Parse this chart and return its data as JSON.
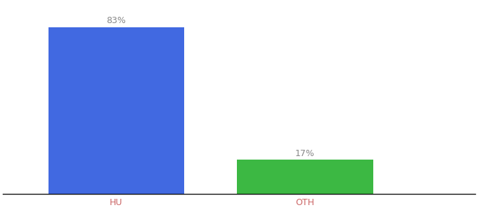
{
  "categories": [
    "HU",
    "OTH"
  ],
  "values": [
    83,
    17
  ],
  "bar_colors": [
    "#4169e1",
    "#3cb843"
  ],
  "label_texts": [
    "83%",
    "17%"
  ],
  "label_color": "#888888",
  "label_fontsize": 9,
  "tick_color": "#cc6666",
  "tick_fontsize": 9,
  "ylim": [
    0,
    95
  ],
  "background_color": "#ffffff",
  "x_positions": [
    1,
    2
  ],
  "bar_width": 0.72,
  "xlim": [
    0.4,
    2.9
  ]
}
